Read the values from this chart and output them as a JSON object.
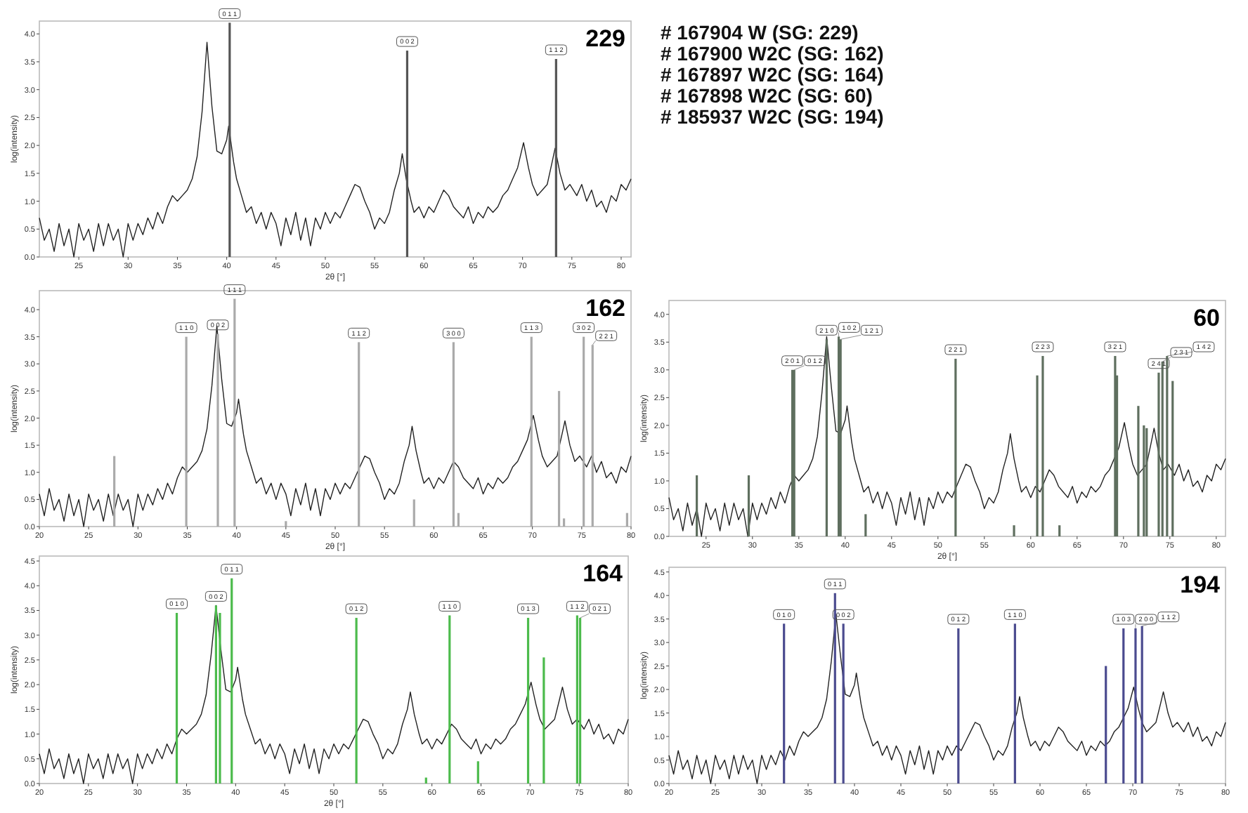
{
  "chart_data": [
    {
      "type": "line",
      "annotations": [
        "229",
        {
          "text": "0 1 1",
          "x": 40.3,
          "y": 4.2
        },
        {
          "text": "0 0 2",
          "x": 58.3,
          "y": 3.7
        },
        {
          "text": "1 1 2",
          "x": 73.4,
          "y": 3.55
        }
      ],
      "xlabel": "2θ [°]",
      "ylabel": "log(intensity)",
      "xlim": [
        21,
        81
      ],
      "xticks": [
        25,
        30,
        35,
        40,
        45,
        50,
        55,
        60,
        65,
        70,
        75,
        80
      ],
      "ylim": [
        0,
        4.23
      ],
      "yticks": [
        {
          "value": 0,
          "label": "0.0"
        },
        0.5,
        {
          "value": 1,
          "label": "1.0"
        },
        1.5,
        {
          "value": 2,
          "label": "2.0"
        },
        2.5,
        {
          "value": 3,
          "label": "3.0"
        },
        3.5,
        {
          "value": 4,
          "label": "4.0"
        }
      ],
      "series": [
        {
          "type": "line",
          "color": "#222222",
          "x": [
            21,
            21.5,
            22,
            22.5,
            23,
            23.5,
            24,
            24.5,
            25,
            25.5,
            26,
            26.5,
            27,
            27.5,
            28,
            28.5,
            29,
            29.5,
            30,
            30.5,
            31,
            31.5,
            32,
            32.5,
            33,
            33.5,
            34,
            34.5,
            35,
            35.5,
            36,
            36.5,
            37,
            37.5,
            38,
            38.5,
            39,
            39.5,
            40,
            40.2,
            40.7,
            41,
            41.5,
            42,
            42.5,
            43,
            43.5,
            44,
            44.5,
            45,
            45.5,
            46,
            46.5,
            47,
            47.5,
            48,
            48.5,
            49,
            49.5,
            50,
            50.5,
            51,
            51.5,
            52,
            52.5,
            53,
            53.5,
            54,
            54.5,
            55,
            55.5,
            56,
            56.5,
            57,
            57.5,
            57.8,
            58.2,
            58.7,
            59,
            59.5,
            60,
            60.5,
            61,
            61.5,
            62,
            62.5,
            63,
            63.5,
            64,
            64.5,
            65,
            65.5,
            66,
            66.5,
            67,
            67.5,
            68,
            68.5,
            69,
            69.5,
            70.1,
            70.6,
            71,
            71.5,
            72,
            72.5,
            73,
            73.3,
            73.8,
            74.3,
            74.8,
            75.5,
            76,
            76.5,
            77,
            77.5,
            78,
            78.5,
            79,
            79.5,
            80,
            80.5,
            81
          ],
          "values": [
            0.7,
            0.3,
            0.5,
            0.1,
            0.6,
            0.2,
            0.5,
            0.0,
            0.6,
            0.3,
            0.5,
            0.1,
            0.6,
            0.2,
            0.6,
            0.3,
            0.5,
            0.0,
            0.6,
            0.3,
            0.6,
            0.4,
            0.7,
            0.5,
            0.8,
            0.6,
            0.9,
            1.1,
            1.0,
            1.1,
            1.2,
            1.4,
            1.8,
            2.6,
            3.85,
            2.7,
            1.9,
            1.85,
            2.1,
            2.35,
            1.7,
            1.4,
            1.1,
            0.8,
            0.9,
            0.6,
            0.8,
            0.5,
            0.8,
            0.6,
            0.2,
            0.7,
            0.4,
            0.8,
            0.3,
            0.7,
            0.2,
            0.7,
            0.5,
            0.8,
            0.6,
            0.8,
            0.7,
            0.9,
            1.1,
            1.3,
            1.25,
            1.0,
            0.8,
            0.5,
            0.7,
            0.6,
            0.8,
            1.2,
            1.5,
            1.85,
            1.4,
            1.0,
            0.8,
            0.9,
            0.7,
            0.9,
            0.8,
            1.0,
            1.2,
            1.1,
            0.9,
            0.8,
            0.7,
            0.9,
            0.6,
            0.8,
            0.7,
            0.9,
            0.8,
            0.9,
            1.1,
            1.2,
            1.4,
            1.6,
            2.05,
            1.6,
            1.3,
            1.1,
            1.2,
            1.3,
            1.7,
            1.95,
            1.5,
            1.2,
            1.3,
            1.1,
            1.3,
            1.0,
            1.2,
            0.9,
            1.0,
            0.8,
            1.1,
            1.0,
            1.3,
            1.2,
            1.4
          ]
        },
        {
          "type": "bar",
          "color": "#555555",
          "x": [
            40.3,
            58.3,
            73.4
          ],
          "values": [
            4.2,
            3.7,
            3.55
          ]
        }
      ]
    },
    {
      "type": "other",
      "annotations": [
        "# 167904 W (SG: 229)",
        "# 167900 W2C (SG: 162)",
        "# 167897 W2C (SG: 164)",
        "# 167898 W2C (SG: 60)",
        "# 185937 W2C (SG: 194)"
      ]
    },
    {
      "type": "line",
      "annotations": [
        "162",
        {
          "text": "1 1 0",
          "x": 34.9,
          "y": 3.5
        },
        {
          "text": "0 0 2",
          "x": 38.1,
          "y": 3.55
        },
        {
          "text": "1 1 1",
          "x": 39.8,
          "y": 4.2
        },
        {
          "text": "1 1 2",
          "x": 52.4,
          "y": 3.4
        },
        {
          "text": "3 0 0",
          "x": 62.0,
          "y": 3.4
        },
        {
          "text": "1 1 3",
          "x": 69.9,
          "y": 3.5
        },
        {
          "text": "3 0 2",
          "x": 75.2,
          "y": 3.5
        },
        {
          "text": "2 2 1",
          "x": 76.1,
          "y": 3.35
        }
      ],
      "xlabel": "2θ [°]",
      "ylabel": "log(intensity)",
      "xlim": [
        20,
        80
      ],
      "xticks": [
        20,
        25,
        30,
        35,
        40,
        45,
        50,
        55,
        60,
        65,
        70,
        75,
        80
      ],
      "ylim": [
        0,
        4.35
      ],
      "yticks": [
        {
          "value": 0,
          "label": "0.0"
        },
        0.5,
        {
          "value": 1,
          "label": "1.0"
        },
        1.5,
        {
          "value": 2,
          "label": "2.0"
        },
        2.5,
        {
          "value": 3,
          "label": "3.0"
        },
        3.5,
        {
          "value": 4,
          "label": "4.0"
        }
      ],
      "series": [
        {
          "type": "line",
          "color": "#222222",
          "x": [
            20,
            20.5,
            21,
            21.5,
            22,
            22.5,
            23,
            23.5,
            24,
            24.5,
            25,
            25.5,
            26,
            26.5,
            27,
            27.5,
            28,
            28.5,
            29,
            29.5,
            30,
            30.5,
            31,
            31.5,
            32,
            32.5,
            33,
            33.5,
            34,
            34.5,
            35,
            35.5,
            36,
            36.5,
            37,
            37.5,
            38,
            38.5,
            39,
            39.5,
            40,
            40.2,
            40.7,
            41,
            41.5,
            42,
            42.5,
            43,
            43.5,
            44,
            44.5,
            45,
            45.5,
            46,
            46.5,
            47,
            47.5,
            48,
            48.5,
            49,
            49.5,
            50,
            50.5,
            51,
            51.5,
            52,
            52.5,
            53,
            53.5,
            54,
            54.5,
            55,
            55.5,
            56,
            56.5,
            57,
            57.5,
            57.8,
            58.2,
            58.7,
            59,
            59.5,
            60,
            60.5,
            61,
            61.5,
            62,
            62.5,
            63,
            63.5,
            64,
            64.5,
            65,
            65.5,
            66,
            66.5,
            67,
            67.5,
            68,
            68.5,
            69,
            69.5,
            70.1,
            70.6,
            71,
            71.5,
            72,
            72.5,
            73,
            73.3,
            73.8,
            74.3,
            74.8,
            75.5,
            76,
            76.5,
            77,
            77.5,
            78,
            78.5,
            79,
            79.5,
            80
          ],
          "values": [
            0.6,
            0.2,
            0.7,
            0.3,
            0.5,
            0.1,
            0.6,
            0.2,
            0.5,
            0.0,
            0.6,
            0.3,
            0.5,
            0.1,
            0.6,
            0.2,
            0.6,
            0.3,
            0.5,
            0.0,
            0.6,
            0.3,
            0.6,
            0.4,
            0.7,
            0.5,
            0.8,
            0.6,
            0.9,
            1.1,
            1.0,
            1.1,
            1.2,
            1.4,
            1.8,
            2.6,
            3.7,
            2.7,
            1.9,
            1.85,
            2.1,
            2.35,
            1.7,
            1.4,
            1.1,
            0.8,
            0.9,
            0.6,
            0.8,
            0.5,
            0.8,
            0.6,
            0.2,
            0.7,
            0.4,
            0.8,
            0.3,
            0.7,
            0.2,
            0.7,
            0.5,
            0.8,
            0.6,
            0.8,
            0.7,
            0.9,
            1.1,
            1.3,
            1.25,
            1.0,
            0.8,
            0.5,
            0.7,
            0.6,
            0.8,
            1.2,
            1.5,
            1.85,
            1.4,
            1.0,
            0.8,
            0.9,
            0.7,
            0.9,
            0.8,
            1.0,
            1.2,
            1.1,
            0.9,
            0.8,
            0.7,
            0.9,
            0.6,
            0.8,
            0.7,
            0.9,
            0.8,
            0.9,
            1.1,
            1.2,
            1.4,
            1.6,
            2.05,
            1.6,
            1.3,
            1.1,
            1.2,
            1.3,
            1.7,
            1.95,
            1.5,
            1.2,
            1.3,
            1.1,
            1.3,
            1.0,
            1.2,
            0.9,
            1.0,
            0.8,
            1.1,
            1.0,
            1.3
          ]
        },
        {
          "type": "bar",
          "color": "#aaaaaa",
          "x": [
            27.6,
            34.9,
            38.1,
            39.8,
            45.0,
            52.4,
            58.0,
            62.0,
            62.5,
            69.9,
            72.7,
            73.2,
            75.2,
            76.1,
            79.6
          ],
          "values": [
            1.3,
            3.5,
            3.55,
            4.2,
            0.1,
            3.4,
            0.5,
            3.4,
            0.25,
            3.5,
            2.5,
            0.15,
            3.5,
            3.35,
            0.25
          ]
        }
      ]
    },
    {
      "type": "line",
      "annotations": [
        "60",
        {
          "text": "2 0 1",
          "x": 34.3,
          "y": 3.0
        },
        {
          "text": "0 1 2",
          "x": 34.5,
          "y": 3.0
        },
        {
          "text": "2 1 0",
          "x": 38.0,
          "y": 3.55
        },
        {
          "text": "1 0 2",
          "x": 39.3,
          "y": 3.6
        },
        {
          "text": "1 2 1",
          "x": 39.5,
          "y": 3.55
        },
        {
          "text": "2 2 1",
          "x": 51.9,
          "y": 3.2
        },
        {
          "text": "2 2 3",
          "x": 61.3,
          "y": 3.25
        },
        {
          "text": "3 2 1",
          "x": 69.1,
          "y": 3.25
        },
        {
          "text": "2 4 1",
          "x": 73.8,
          "y": 2.95
        },
        {
          "text": "2 3 1",
          "x": 74.2,
          "y": 3.15
        },
        {
          "text": "1 4 2",
          "x": 74.7,
          "y": 3.25
        }
      ],
      "xlabel": "2θ [°]",
      "ylabel": "log(intensity)",
      "xlim": [
        21,
        81
      ],
      "xticks": [
        25,
        30,
        35,
        40,
        45,
        50,
        55,
        60,
        65,
        70,
        75,
        80
      ],
      "ylim": [
        0,
        4.25
      ],
      "yticks": [
        {
          "value": 0,
          "label": "0.0"
        },
        0.5,
        {
          "value": 1,
          "label": "1.0"
        },
        1.5,
        {
          "value": 2,
          "label": "2.0"
        },
        2.5,
        {
          "value": 3,
          "label": "3.0"
        },
        3.5,
        {
          "value": 4,
          "label": "4.0"
        }
      ],
      "series": [
        {
          "type": "line",
          "color": "#222222",
          "x": [
            21,
            21.5,
            22,
            22.5,
            23,
            23.5,
            24,
            24.5,
            25,
            25.5,
            26,
            26.5,
            27,
            27.5,
            28,
            28.5,
            29,
            29.5,
            30,
            30.5,
            31,
            31.5,
            32,
            32.5,
            33,
            33.5,
            34,
            34.5,
            35,
            35.5,
            36,
            36.5,
            37,
            37.5,
            38,
            38.5,
            39,
            39.5,
            40,
            40.2,
            40.7,
            41,
            41.5,
            42,
            42.5,
            43,
            43.5,
            44,
            44.5,
            45,
            45.5,
            46,
            46.5,
            47,
            47.5,
            48,
            48.5,
            49,
            49.5,
            50,
            50.5,
            51,
            51.5,
            52,
            52.5,
            53,
            53.5,
            54,
            54.5,
            55,
            55.5,
            56,
            56.5,
            57,
            57.5,
            57.8,
            58.2,
            58.7,
            59,
            59.5,
            60,
            60.5,
            61,
            61.5,
            62,
            62.5,
            63,
            63.5,
            64,
            64.5,
            65,
            65.5,
            66,
            66.5,
            67,
            67.5,
            68,
            68.5,
            69,
            69.5,
            70.1,
            70.6,
            71,
            71.5,
            72,
            72.5,
            73,
            73.3,
            73.8,
            74.3,
            74.8,
            75.5,
            76,
            76.5,
            77,
            77.5,
            78,
            78.5,
            79,
            79.5,
            80,
            80.5,
            81
          ],
          "values": [
            0.7,
            0.3,
            0.5,
            0.1,
            0.6,
            0.2,
            0.5,
            0.0,
            0.6,
            0.3,
            0.5,
            0.1,
            0.6,
            0.2,
            0.6,
            0.3,
            0.5,
            0.0,
            0.6,
            0.3,
            0.6,
            0.4,
            0.7,
            0.5,
            0.8,
            0.6,
            0.9,
            1.1,
            1.0,
            1.1,
            1.2,
            1.4,
            1.8,
            2.6,
            3.6,
            2.7,
            1.9,
            1.85,
            2.1,
            2.35,
            1.7,
            1.4,
            1.1,
            0.8,
            0.9,
            0.6,
            0.8,
            0.5,
            0.8,
            0.6,
            0.2,
            0.7,
            0.4,
            0.8,
            0.3,
            0.7,
            0.2,
            0.7,
            0.5,
            0.8,
            0.6,
            0.8,
            0.7,
            0.9,
            1.1,
            1.3,
            1.25,
            1.0,
            0.8,
            0.5,
            0.7,
            0.6,
            0.8,
            1.2,
            1.5,
            1.85,
            1.4,
            1.0,
            0.8,
            0.9,
            0.7,
            0.9,
            0.8,
            1.0,
            1.2,
            1.1,
            0.9,
            0.8,
            0.7,
            0.9,
            0.6,
            0.8,
            0.7,
            0.9,
            0.8,
            0.9,
            1.1,
            1.2,
            1.4,
            1.6,
            2.05,
            1.6,
            1.3,
            1.1,
            1.2,
            1.3,
            1.7,
            1.95,
            1.5,
            1.2,
            1.3,
            1.1,
            1.3,
            1.0,
            1.2,
            0.9,
            1.0,
            0.8,
            1.1,
            1.0,
            1.3,
            1.2,
            1.4
          ]
        },
        {
          "type": "bar",
          "color": "#5f6f5f",
          "x": [
            24.0,
            29.6,
            34.3,
            34.5,
            38.0,
            39.3,
            39.5,
            42.2,
            51.9,
            58.2,
            60.7,
            61.3,
            63.1,
            69.1,
            69.3,
            71.6,
            72.2,
            72.5,
            73.8,
            74.2,
            74.7,
            75.3
          ],
          "values": [
            1.1,
            1.1,
            3.0,
            3.0,
            3.55,
            3.6,
            3.55,
            0.4,
            3.2,
            0.2,
            2.9,
            3.25,
            0.2,
            3.25,
            2.9,
            2.35,
            2.0,
            1.95,
            2.95,
            3.15,
            3.25,
            2.8
          ]
        }
      ]
    },
    {
      "type": "line",
      "annotations": [
        "164",
        {
          "text": "0 1 0",
          "x": 34.0,
          "y": 3.45
        },
        {
          "text": "0 0 2",
          "x": 38.0,
          "y": 3.6
        },
        {
          "text": "0 1 1",
          "x": 39.6,
          "y": 4.15
        },
        {
          "text": "0 1 2",
          "x": 52.3,
          "y": 3.35
        },
        {
          "text": "1 1 0",
          "x": 61.8,
          "y": 3.4
        },
        {
          "text": "0 1 3",
          "x": 69.8,
          "y": 3.35
        },
        {
          "text": "1 1 2",
          "x": 74.8,
          "y": 3.4
        },
        {
          "text": "0 2 1",
          "x": 75.1,
          "y": 3.35
        }
      ],
      "xlabel": "2θ [°]",
      "ylabel": "log(intensity)",
      "xlim": [
        20,
        80
      ],
      "xticks": [
        20,
        25,
        30,
        35,
        40,
        45,
        50,
        55,
        60,
        65,
        70,
        75,
        80
      ],
      "ylim": [
        0,
        4.6
      ],
      "yticks": [
        {
          "value": 0,
          "label": "0.0"
        },
        0.5,
        {
          "value": 1,
          "label": "1.0"
        },
        1.5,
        {
          "value": 2,
          "label": "2.0"
        },
        2.5,
        {
          "value": 3,
          "label": "3.0"
        },
        3.5,
        {
          "value": 4,
          "label": "4.0"
        },
        4.5
      ],
      "series": [
        {
          "type": "line",
          "color": "#222222",
          "x": [
            20,
            20.5,
            21,
            21.5,
            22,
            22.5,
            23,
            23.5,
            24,
            24.5,
            25,
            25.5,
            26,
            26.5,
            27,
            27.5,
            28,
            28.5,
            29,
            29.5,
            30,
            30.5,
            31,
            31.5,
            32,
            32.5,
            33,
            33.5,
            34,
            34.5,
            35,
            35.5,
            36,
            36.5,
            37,
            37.5,
            38,
            38.5,
            39,
            39.5,
            40,
            40.2,
            40.7,
            41,
            41.5,
            42,
            42.5,
            43,
            43.5,
            44,
            44.5,
            45,
            45.5,
            46,
            46.5,
            47,
            47.5,
            48,
            48.5,
            49,
            49.5,
            50,
            50.5,
            51,
            51.5,
            52,
            52.5,
            53,
            53.5,
            54,
            54.5,
            55,
            55.5,
            56,
            56.5,
            57,
            57.5,
            57.8,
            58.2,
            58.7,
            59,
            59.5,
            60,
            60.5,
            61,
            61.5,
            62,
            62.5,
            63,
            63.5,
            64,
            64.5,
            65,
            65.5,
            66,
            66.5,
            67,
            67.5,
            68,
            68.5,
            69,
            69.5,
            70.1,
            70.6,
            71,
            71.5,
            72,
            72.5,
            73,
            73.3,
            73.8,
            74.3,
            74.8,
            75.5,
            76,
            76.5,
            77,
            77.5,
            78,
            78.5,
            79,
            79.5,
            80
          ],
          "values": [
            0.6,
            0.2,
            0.7,
            0.3,
            0.5,
            0.1,
            0.6,
            0.2,
            0.5,
            0.0,
            0.6,
            0.3,
            0.5,
            0.1,
            0.6,
            0.2,
            0.6,
            0.3,
            0.5,
            0.0,
            0.6,
            0.3,
            0.6,
            0.4,
            0.7,
            0.5,
            0.8,
            0.6,
            0.9,
            1.1,
            1.0,
            1.1,
            1.2,
            1.4,
            1.8,
            2.6,
            3.6,
            2.7,
            1.9,
            1.85,
            2.1,
            2.35,
            1.7,
            1.4,
            1.1,
            0.8,
            0.9,
            0.6,
            0.8,
            0.5,
            0.8,
            0.6,
            0.2,
            0.7,
            0.4,
            0.8,
            0.3,
            0.7,
            0.2,
            0.7,
            0.5,
            0.8,
            0.6,
            0.8,
            0.7,
            0.9,
            1.1,
            1.3,
            1.25,
            1.0,
            0.8,
            0.5,
            0.7,
            0.6,
            0.8,
            1.2,
            1.5,
            1.85,
            1.4,
            1.0,
            0.8,
            0.9,
            0.7,
            0.9,
            0.8,
            1.0,
            1.2,
            1.1,
            0.9,
            0.8,
            0.7,
            0.9,
            0.6,
            0.8,
            0.7,
            0.9,
            0.8,
            0.9,
            1.1,
            1.2,
            1.4,
            1.6,
            2.05,
            1.6,
            1.3,
            1.1,
            1.2,
            1.3,
            1.7,
            1.95,
            1.5,
            1.2,
            1.3,
            1.1,
            1.3,
            1.0,
            1.2,
            0.9,
            1.0,
            0.8,
            1.1,
            1.0,
            1.3
          ]
        },
        {
          "type": "bar",
          "color": "#4cbb4c",
          "x": [
            34.0,
            38.0,
            38.4,
            39.6,
            52.3,
            59.4,
            61.8,
            64.7,
            69.8,
            71.4,
            74.8,
            75.1
          ],
          "values": [
            3.45,
            3.6,
            3.45,
            4.15,
            3.35,
            0.12,
            3.4,
            0.45,
            3.35,
            2.55,
            3.4,
            3.35
          ]
        }
      ]
    },
    {
      "type": "line",
      "annotations": [
        "194",
        {
          "text": "0 1 0",
          "x": 32.4,
          "y": 3.4
        },
        {
          "text": "0 1 1",
          "x": 37.9,
          "y": 4.05
        },
        {
          "text": "0 0 2",
          "x": 38.8,
          "y": 3.4
        },
        {
          "text": "0 1 2",
          "x": 51.2,
          "y": 3.3
        },
        {
          "text": "1 1 0",
          "x": 57.3,
          "y": 3.4
        },
        {
          "text": "1 0 3",
          "x": 69.0,
          "y": 3.3
        },
        {
          "text": "2 0 0",
          "x": 70.3,
          "y": 3.3
        },
        {
          "text": "1 1 2",
          "x": 71.0,
          "y": 3.35
        }
      ],
      "ylabel": "log(intensity)",
      "xlim": [
        20,
        80
      ],
      "xticks": [
        20,
        25,
        30,
        35,
        40,
        45,
        50,
        55,
        60,
        65,
        70,
        75,
        80
      ],
      "ylim": [
        0,
        4.6
      ],
      "yticks": [
        {
          "value": 0,
          "label": "0.0"
        },
        0.5,
        {
          "value": 1,
          "label": "1.0"
        },
        1.5,
        {
          "value": 2,
          "label": "2.0"
        },
        2.5,
        {
          "value": 3,
          "label": "3.0"
        },
        3.5,
        {
          "value": 4,
          "label": "4.0"
        },
        4.5
      ],
      "series": [
        {
          "type": "line",
          "color": "#222222",
          "x": [
            20,
            20.5,
            21,
            21.5,
            22,
            22.5,
            23,
            23.5,
            24,
            24.5,
            25,
            25.5,
            26,
            26.5,
            27,
            27.5,
            28,
            28.5,
            29,
            29.5,
            30,
            30.5,
            31,
            31.5,
            32,
            32.5,
            33,
            33.5,
            34,
            34.5,
            35,
            35.5,
            36,
            36.5,
            37,
            37.5,
            38,
            38.5,
            39,
            39.5,
            40,
            40.2,
            40.7,
            41,
            41.5,
            42,
            42.5,
            43,
            43.5,
            44,
            44.5,
            45,
            45.5,
            46,
            46.5,
            47,
            47.5,
            48,
            48.5,
            49,
            49.5,
            50,
            50.5,
            51,
            51.5,
            52,
            52.5,
            53,
            53.5,
            54,
            54.5,
            55,
            55.5,
            56,
            56.5,
            57,
            57.5,
            57.8,
            58.2,
            58.7,
            59,
            59.5,
            60,
            60.5,
            61,
            61.5,
            62,
            62.5,
            63,
            63.5,
            64,
            64.5,
            65,
            65.5,
            66,
            66.5,
            67,
            67.5,
            68,
            68.5,
            69,
            69.5,
            70.1,
            70.6,
            71,
            71.5,
            72,
            72.5,
            73,
            73.3,
            73.8,
            74.3,
            74.8,
            75.5,
            76,
            76.5,
            77,
            77.5,
            78,
            78.5,
            79,
            79.5,
            80
          ],
          "values": [
            0.6,
            0.2,
            0.7,
            0.3,
            0.5,
            0.1,
            0.6,
            0.2,
            0.5,
            0.0,
            0.6,
            0.3,
            0.5,
            0.1,
            0.6,
            0.2,
            0.6,
            0.3,
            0.5,
            0.0,
            0.6,
            0.3,
            0.6,
            0.4,
            0.7,
            0.5,
            0.8,
            0.6,
            0.9,
            1.1,
            1.0,
            1.1,
            1.2,
            1.4,
            1.8,
            2.6,
            3.6,
            2.7,
            1.9,
            1.85,
            2.1,
            2.35,
            1.7,
            1.4,
            1.1,
            0.8,
            0.9,
            0.6,
            0.8,
            0.5,
            0.8,
            0.6,
            0.2,
            0.7,
            0.4,
            0.8,
            0.3,
            0.7,
            0.2,
            0.7,
            0.5,
            0.8,
            0.6,
            0.8,
            0.7,
            0.9,
            1.1,
            1.3,
            1.25,
            1.0,
            0.8,
            0.5,
            0.7,
            0.6,
            0.8,
            1.2,
            1.5,
            1.85,
            1.4,
            1.0,
            0.8,
            0.9,
            0.7,
            0.9,
            0.8,
            1.0,
            1.2,
            1.1,
            0.9,
            0.8,
            0.7,
            0.9,
            0.6,
            0.8,
            0.7,
            0.9,
            0.8,
            0.9,
            1.1,
            1.2,
            1.4,
            1.6,
            2.05,
            1.6,
            1.3,
            1.1,
            1.2,
            1.3,
            1.7,
            1.95,
            1.5,
            1.2,
            1.3,
            1.1,
            1.3,
            1.0,
            1.2,
            0.9,
            1.0,
            0.8,
            1.1,
            1.0,
            1.3
          ]
        },
        {
          "type": "bar",
          "color": "#4b4b8f",
          "x": [
            32.4,
            37.9,
            38.8,
            51.2,
            57.3,
            67.1,
            69.0,
            70.3,
            71.0
          ],
          "values": [
            3.4,
            4.05,
            3.4,
            3.3,
            3.4,
            2.5,
            3.3,
            3.3,
            3.35
          ]
        }
      ]
    }
  ]
}
